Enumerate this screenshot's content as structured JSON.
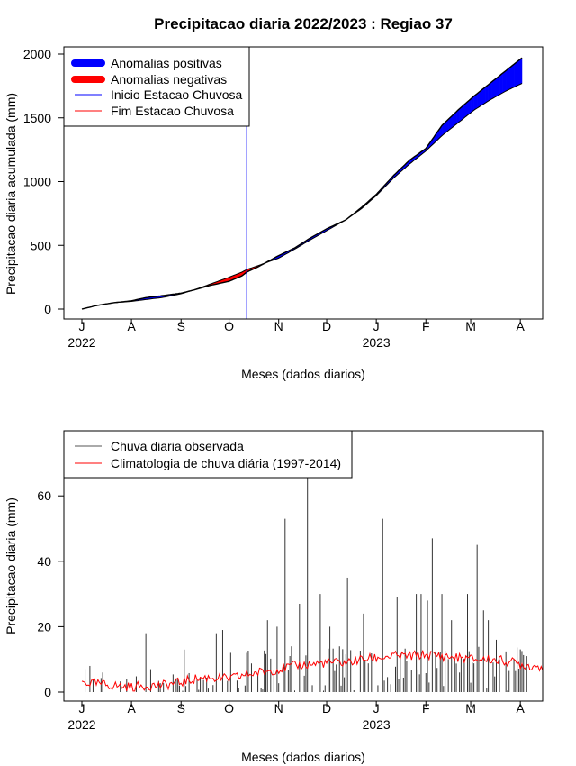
{
  "title": "Precipitacao diaria 2022/2023 : Regiao 37",
  "colors": {
    "positive": "#0000ff",
    "negative": "#ff0000",
    "rainy_start_line": "#0000ff",
    "rainy_end_line": "#ff0000",
    "observed": "#000000",
    "climatology": "#ff0000"
  },
  "month_ticks": [
    "J",
    "A",
    "S",
    "O",
    "N",
    "D",
    "J",
    "F",
    "M",
    "A"
  ],
  "year_labels": [
    "2022",
    "2023"
  ],
  "chart_data": [
    {
      "type": "area",
      "ylabel": "Precipitacao diaria acumulada (mm)",
      "xlabel": "Meses (dados diarios)",
      "x_unit": "days since 1 Jul 2022",
      "ylim": [
        0,
        2000
      ],
      "yticks": [
        "0",
        "500",
        "1000",
        "1500",
        "2000"
      ],
      "legend": [
        {
          "label": "Anomalias positivas",
          "kind": "thick",
          "color": "#0000ff"
        },
        {
          "label": "Anomalias negativas",
          "kind": "thick",
          "color": "#ff0000"
        },
        {
          "label": "Inicio Estacao Chuvosa",
          "kind": "thin",
          "color": "#0000ff"
        },
        {
          "label": "Fim Estacao Chuvosa",
          "kind": "thin",
          "color": "#ff0000"
        }
      ],
      "legend_position": "top-left",
      "rainy_season_start_day": 103,
      "observed_cumulative": {
        "x": [
          0,
          10,
          20,
          31,
          40,
          50,
          62,
          70,
          80,
          92,
          100,
          103,
          110,
          123,
          133,
          143,
          153,
          165,
          175,
          184,
          195,
          205,
          215,
          225,
          235,
          245,
          255,
          265,
          275
        ],
        "y": [
          0,
          30,
          50,
          65,
          90,
          105,
          125,
          150,
          185,
          218,
          260,
          290,
          330,
          420,
          480,
          560,
          630,
          700,
          800,
          900,
          1050,
          1170,
          1260,
          1440,
          1560,
          1670,
          1770,
          1870,
          1970
        ]
      },
      "climatology_cumulative": {
        "x": [
          0,
          10,
          20,
          31,
          40,
          50,
          62,
          70,
          80,
          92,
          100,
          103,
          110,
          123,
          133,
          143,
          153,
          165,
          175,
          184,
          195,
          205,
          215,
          225,
          235,
          245,
          255,
          265,
          275
        ],
        "y": [
          0,
          30,
          50,
          60,
          75,
          90,
          120,
          150,
          195,
          250,
          290,
          310,
          340,
          400,
          470,
          545,
          615,
          700,
          790,
          890,
          1030,
          1140,
          1240,
          1360,
          1460,
          1560,
          1640,
          1710,
          1770
        ]
      }
    },
    {
      "type": "bar",
      "ylabel": "Precipitacao diaria (mm)",
      "xlabel": "Meses (dados diarios)",
      "x_unit": "days since 1 Jul 2022",
      "ylim": [
        0,
        80
      ],
      "yticks": [
        "0",
        "20",
        "40",
        "60"
      ],
      "legend": [
        {
          "label": "Chuva diaria observada",
          "kind": "thin",
          "color": "#000000"
        },
        {
          "label": "Climatologia de chuva diária (1997-2014)",
          "kind": "thin",
          "color": "#ff0000"
        }
      ],
      "legend_position": "top-left",
      "observed_peaks": {
        "x": [
          2,
          5,
          13,
          40,
          43,
          64,
          84,
          88,
          93,
          103,
          116,
          122,
          127,
          131,
          136,
          141,
          149,
          155,
          166,
          176,
          188,
          197,
          209,
          212,
          216,
          219,
          225,
          231,
          241,
          247,
          251,
          254,
          259,
          261
        ],
        "y": [
          7,
          8,
          6,
          18,
          7,
          13,
          18,
          19,
          12,
          12,
          22,
          20,
          53,
          14,
          27,
          80,
          30,
          20,
          35,
          24,
          53,
          29,
          30,
          30,
          28,
          47,
          30,
          22,
          30,
          45,
          25,
          22,
          16,
          10
        ]
      },
      "climatology": {
        "x": [
          0,
          10,
          20,
          31,
          40,
          50,
          62,
          70,
          80,
          92,
          100,
          110,
          123,
          133,
          143,
          153,
          165,
          175,
          184,
          195,
          205,
          215,
          225,
          235,
          245,
          255,
          265,
          280
        ],
        "y": [
          3,
          2.5,
          2,
          1.5,
          2,
          2,
          3,
          4,
          4.5,
          4,
          5,
          6,
          7,
          8,
          8.5,
          9,
          9,
          10,
          10.5,
          11,
          11,
          11.5,
          11,
          10.5,
          10,
          10,
          9.5,
          8
        ]
      }
    }
  ]
}
